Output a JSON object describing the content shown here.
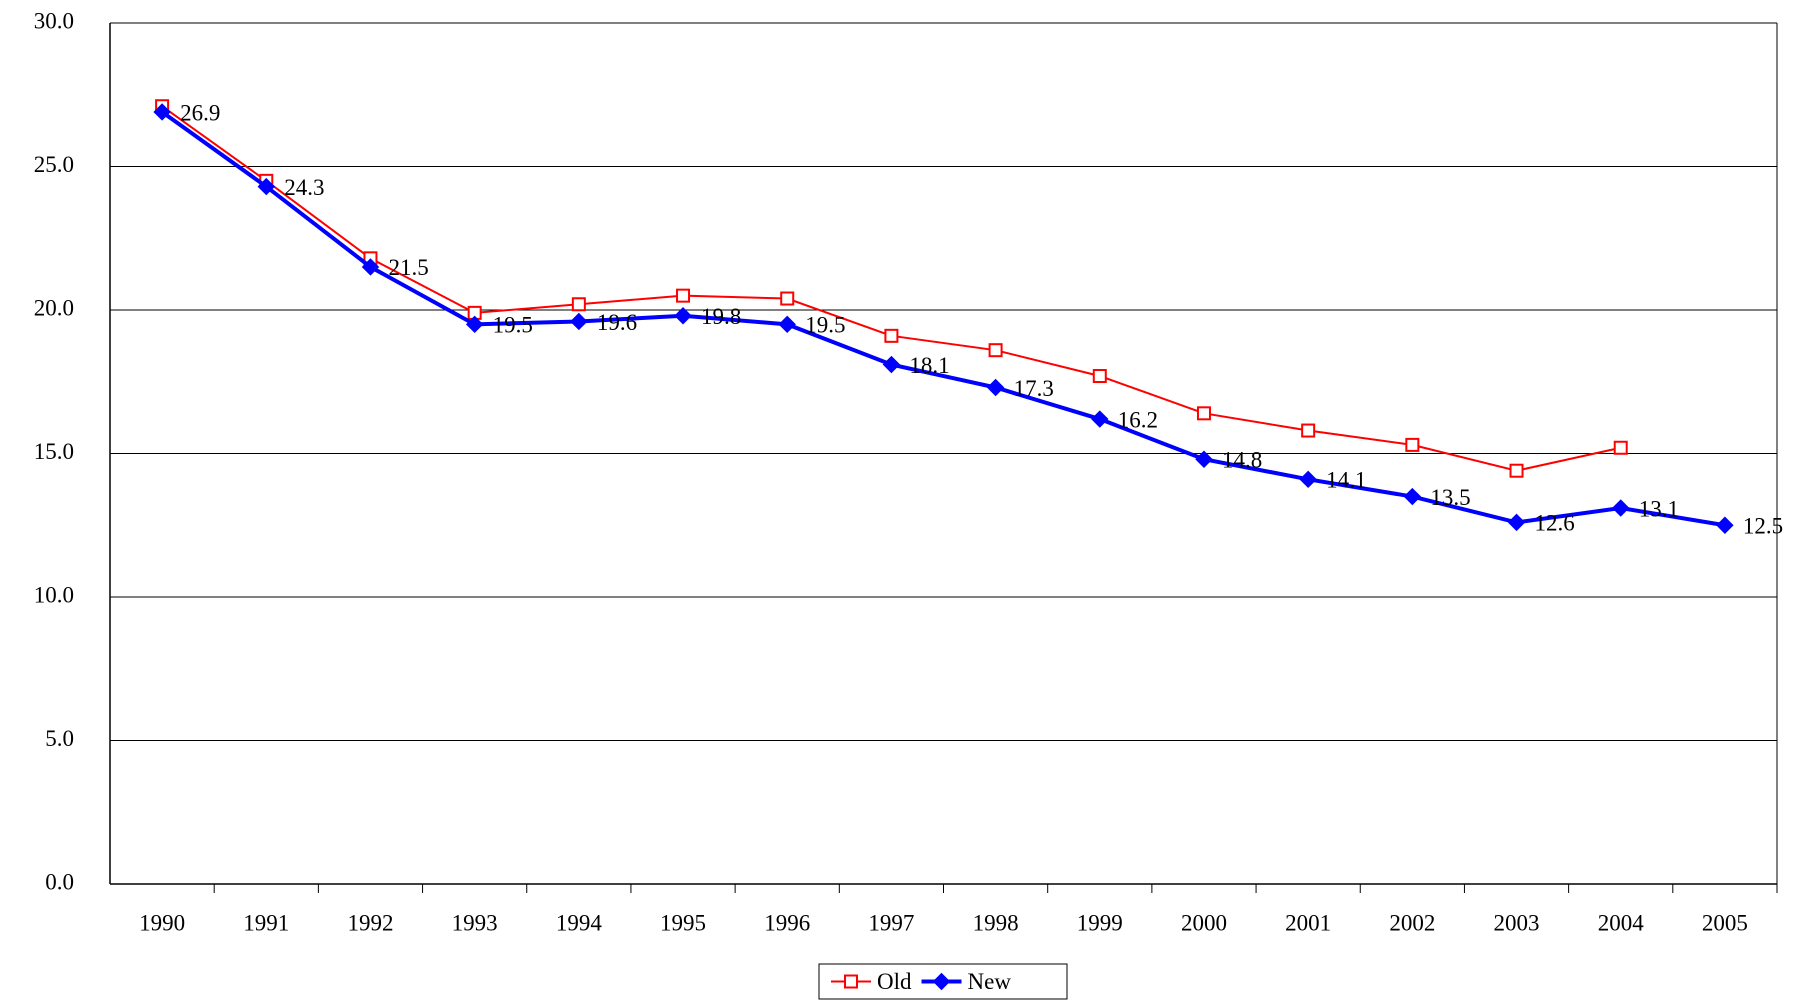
{
  "chart_data": {
    "type": "line",
    "categories": [
      "1990",
      "1991",
      "1992",
      "1993",
      "1994",
      "1995",
      "1996",
      "1997",
      "1998",
      "1999",
      "2000",
      "2001",
      "2002",
      "2003",
      "2004",
      "2005"
    ],
    "series": [
      {
        "name": "Old",
        "color": "#ff0000",
        "marker": "square",
        "values": [
          27.1,
          24.5,
          21.8,
          19.9,
          20.2,
          20.5,
          20.4,
          19.1,
          18.6,
          17.7,
          16.4,
          15.8,
          15.3,
          14.4,
          15.2,
          null
        ]
      },
      {
        "name": "New",
        "color": "#0000ff",
        "marker": "diamond",
        "data_labels": true,
        "values": [
          26.9,
          24.3,
          21.5,
          19.5,
          19.6,
          19.8,
          19.5,
          18.1,
          17.3,
          16.2,
          14.8,
          14.1,
          13.5,
          12.6,
          13.1,
          12.5
        ]
      }
    ],
    "ylim": [
      0,
      30
    ],
    "yticks": [
      {
        "value": 0,
        "label": "0.0"
      },
      {
        "value": 5,
        "label": "5.0"
      },
      {
        "value": 10,
        "label": "10.0"
      },
      {
        "value": 15,
        "label": "15.0"
      },
      {
        "value": 20,
        "label": "20.0"
      },
      {
        "value": 25,
        "label": "25.0"
      },
      {
        "value": 30,
        "label": "30.0"
      }
    ],
    "grid": true,
    "legend": "bottom"
  }
}
